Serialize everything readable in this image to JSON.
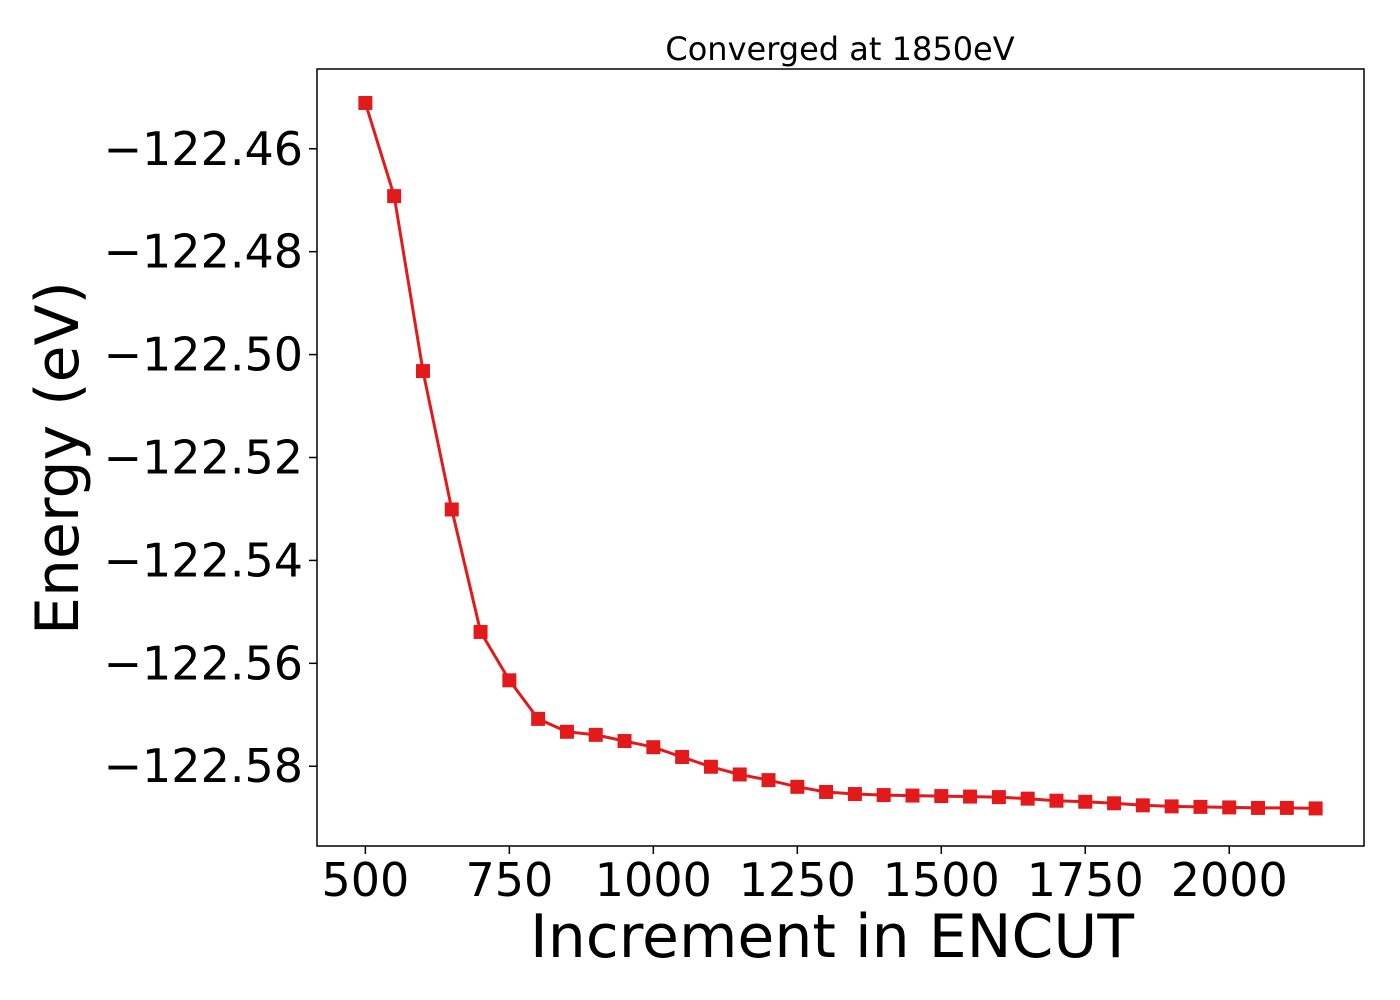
{
  "chart_data": {
    "type": "line",
    "title": "Converged at 1850eV",
    "xlabel": "Increment in ENCUT",
    "ylabel": "Energy (eV)",
    "xlim": [
      416,
      2234
    ],
    "ylim": [
      -122.5955,
      -122.4445
    ],
    "x_ticks": [
      500,
      750,
      1000,
      1250,
      1500,
      1750,
      2000
    ],
    "x_tick_labels": [
      "500",
      "750",
      "1000",
      "1250",
      "1500",
      "1750",
      "2000"
    ],
    "y_ticks": [
      -122.46,
      -122.48,
      -122.5,
      -122.52,
      -122.54,
      -122.56,
      -122.58
    ],
    "y_tick_labels": [
      "−122.46",
      "−122.48",
      "−122.50",
      "−122.52",
      "−122.54",
      "−122.56",
      "−122.58"
    ],
    "grid": false,
    "legend": "none",
    "marker": "square",
    "series": [
      {
        "color": "#e31a1c",
        "x": [
          500,
          550,
          600,
          650,
          700,
          750,
          800,
          850,
          900,
          950,
          1000,
          1050,
          1100,
          1150,
          1200,
          1250,
          1300,
          1350,
          1400,
          1450,
          1500,
          1550,
          1600,
          1650,
          1700,
          1750,
          1800,
          1850,
          1900,
          1950,
          2000,
          2050,
          2100,
          2150
        ],
        "y": [
          -122.4511,
          -122.4692,
          -122.5032,
          -122.5301,
          -122.5539,
          -122.5633,
          -122.5708,
          -122.5733,
          -122.5739,
          -122.5751,
          -122.5763,
          -122.5782,
          -122.5801,
          -122.5816,
          -122.5827,
          -122.584,
          -122.585,
          -122.5854,
          -122.5856,
          -122.5857,
          -122.5858,
          -122.5859,
          -122.586,
          -122.5863,
          -122.5867,
          -122.5869,
          -122.5872,
          -122.5876,
          -122.5878,
          -122.5879,
          -122.588,
          -122.5881,
          -122.5881,
          -122.5882
        ]
      }
    ]
  }
}
